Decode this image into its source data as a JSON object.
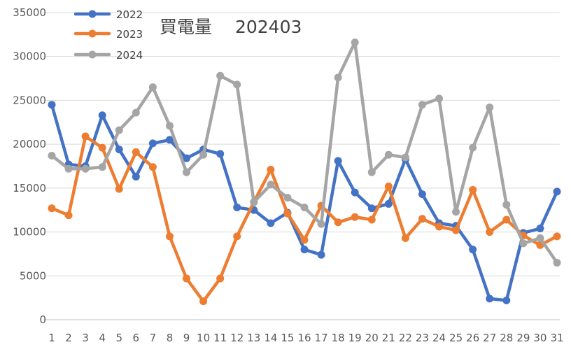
{
  "chart_data": {
    "type": "line",
    "title": "買電量　 202403",
    "xlabel": "",
    "ylabel": "",
    "ylim": [
      0,
      35000
    ],
    "yticks": [
      0,
      5000,
      10000,
      15000,
      20000,
      25000,
      30000,
      35000
    ],
    "grid": true,
    "legend_position": "top-left",
    "x": [
      "1",
      "2",
      "3",
      "4",
      "5",
      "6",
      "7",
      "8",
      "9",
      "10",
      "11",
      "12",
      "13",
      "14",
      "15",
      "16",
      "17",
      "18",
      "19",
      "20",
      "21",
      "22",
      "23",
      "24",
      "25",
      "26",
      "27",
      "28",
      "29",
      "30",
      "31"
    ],
    "series": [
      {
        "name": "2022",
        "color": "#4472c4",
        "values": [
          24500,
          17700,
          17500,
          23300,
          19400,
          16300,
          20100,
          20500,
          18400,
          19400,
          18900,
          12800,
          12500,
          11000,
          12200,
          8000,
          7400,
          18100,
          14500,
          12700,
          13200,
          18300,
          14300,
          11000,
          10700,
          8000,
          2400,
          2200,
          9900,
          10400,
          14600
        ]
      },
      {
        "name": "2023",
        "color": "#ed7d31",
        "values": [
          12700,
          11900,
          20900,
          19600,
          14900,
          19100,
          17400,
          9500,
          4700,
          2100,
          4700,
          9500,
          13400,
          17100,
          12100,
          9100,
          13000,
          11100,
          11700,
          11400,
          15200,
          9300,
          11500,
          10600,
          10200,
          14800,
          10000,
          11400,
          9600,
          8500,
          9500
        ]
      },
      {
        "name": "2024",
        "color": "#a5a5a5",
        "values": [
          18700,
          17200,
          17200,
          17400,
          21600,
          23600,
          26500,
          22100,
          16800,
          18800,
          27800,
          26800,
          13400,
          15400,
          13900,
          12800,
          10900,
          27600,
          31600,
          16800,
          18800,
          18500,
          24500,
          25200,
          12300,
          19600,
          24200,
          13100,
          8700,
          9300,
          6500
        ]
      }
    ]
  }
}
